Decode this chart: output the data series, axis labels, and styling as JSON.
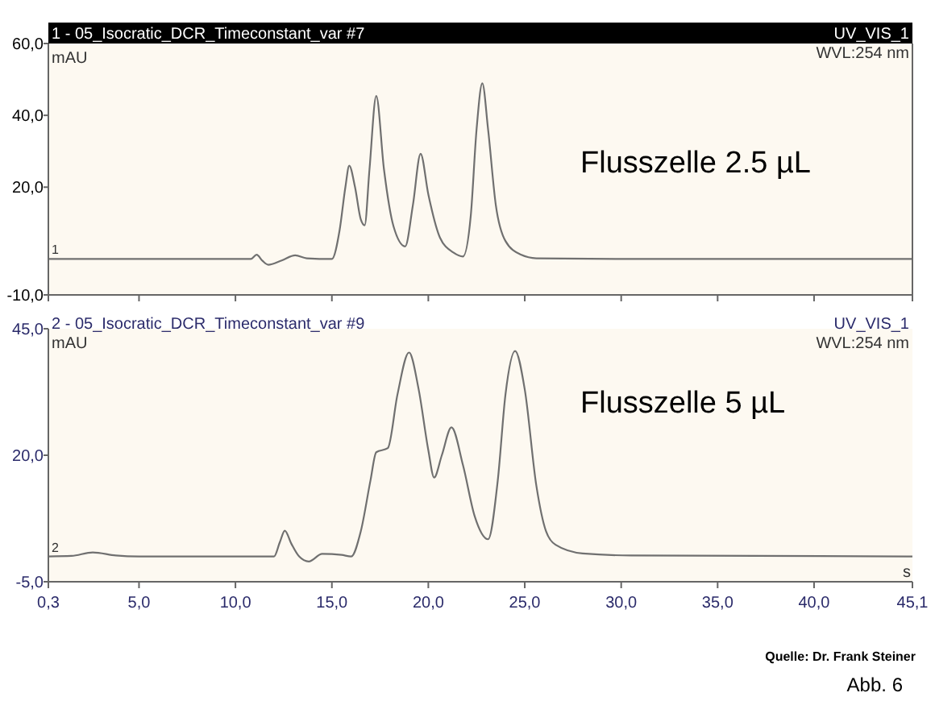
{
  "chart_data": [
    {
      "type": "line",
      "title": "1 - 05_Isocratic_DCR_Timeconstant_var #7",
      "ylabel": "mAU",
      "annotations": [
        "UV_VIS_1",
        "WVL:254 nm",
        "Flusszelle 2.5 µL",
        "1"
      ],
      "xlim": [
        0.3,
        45.1
      ],
      "ylim": [
        -10,
        60
      ],
      "xticks": [
        {
          "value": 0.3,
          "label": null
        },
        {
          "value": 5,
          "label": null
        },
        {
          "value": 10,
          "label": null
        },
        {
          "value": 15,
          "label": null
        },
        {
          "value": 20,
          "label": null
        },
        {
          "value": 25,
          "label": null
        },
        {
          "value": 30,
          "label": null
        },
        {
          "value": 35,
          "label": null
        },
        {
          "value": 40,
          "label": null
        },
        {
          "value": 45.1,
          "label": null
        }
      ],
      "yticks": [
        {
          "value": -10,
          "label": "-10,0"
        },
        {
          "value": 20,
          "label": "20,0"
        },
        {
          "value": 40,
          "label": "40,0"
        },
        {
          "value": 60,
          "label": "60,0"
        }
      ],
      "tick_labels": "y",
      "grid": false,
      "series": [
        {
          "color": "#707070",
          "x": [
            0.3,
            10.8,
            11.1,
            11.4,
            11.7,
            12.4,
            13.1,
            13.7,
            15.0,
            15.4,
            15.7,
            15.9,
            16.2,
            16.5,
            16.7,
            16.95,
            17.3,
            17.7,
            18.2,
            18.8,
            19.2,
            19.6,
            20.0,
            20.6,
            21.3,
            21.8,
            22.2,
            22.5,
            22.8,
            23.1,
            23.5,
            24.0,
            24.8,
            25.6,
            30,
            45.1
          ],
          "values": [
            0,
            0,
            1.2,
            -0.5,
            -1.6,
            -0.4,
            1.0,
            0.2,
            0,
            8,
            20,
            26,
            20,
            11,
            9.4,
            25,
            45.4,
            25,
            9,
            3.5,
            15,
            29.3,
            18,
            6,
            1.8,
            0.7,
            12,
            36,
            48.9,
            36,
            15,
            5,
            1.2,
            0.2,
            0,
            0
          ]
        }
      ]
    },
    {
      "type": "line",
      "title": "2 - 05_Isocratic_DCR_Timeconstant_var #9",
      "ylabel": "mAU",
      "xlabel": "s",
      "annotations": [
        "UV_VIS_1",
        "WVL:254 nm",
        "Flusszelle 5 µL",
        "2",
        "Quelle: Dr. Frank Steiner",
        "Abb. 6"
      ],
      "xlim": [
        0.3,
        45.1
      ],
      "ylim": [
        -5,
        45
      ],
      "xticks": [
        {
          "value": 0.3,
          "label": "0,3"
        },
        {
          "value": 5,
          "label": "5,0"
        },
        {
          "value": 10,
          "label": "10,0"
        },
        {
          "value": 15,
          "label": "15,0"
        },
        {
          "value": 20,
          "label": "20,0"
        },
        {
          "value": 25,
          "label": "25,0"
        },
        {
          "value": 30,
          "label": "30,0"
        },
        {
          "value": 35,
          "label": "35,0"
        },
        {
          "value": 40,
          "label": "40,0"
        },
        {
          "value": 45.1,
          "label": "45,1"
        }
      ],
      "yticks": [
        {
          "value": -5,
          "label": "-5,0"
        },
        {
          "value": 20,
          "label": "20,0"
        },
        {
          "value": 45,
          "label": "45,0"
        }
      ],
      "grid": false,
      "series": [
        {
          "color": "#707070",
          "x": [
            0.3,
            1.5,
            2.6,
            3.8,
            5,
            12.0,
            12.3,
            12.56,
            12.9,
            13.3,
            13.8,
            14.5,
            15.5,
            16.0,
            16.5,
            17.0,
            17.3,
            17.9,
            18.4,
            19.0,
            19.5,
            20.0,
            20.3,
            20.7,
            21.2,
            21.8,
            22.4,
            23.1,
            23.6,
            24.0,
            24.5,
            25.0,
            25.6,
            26.1,
            26.6,
            28,
            30.5,
            45.1
          ],
          "values": [
            0,
            0.1,
            0.8,
            0.2,
            0,
            0,
            2.8,
            5.1,
            2.5,
            0,
            -1.0,
            0.5,
            0.3,
            0,
            5,
            15,
            20.6,
            21.4,
            32,
            40.3,
            33,
            21,
            15.6,
            20,
            25.5,
            18,
            8,
            3.4,
            15,
            32,
            40.6,
            33,
            14,
            5,
            2.3,
            0.6,
            0.2,
            0
          ]
        }
      ]
    }
  ]
}
